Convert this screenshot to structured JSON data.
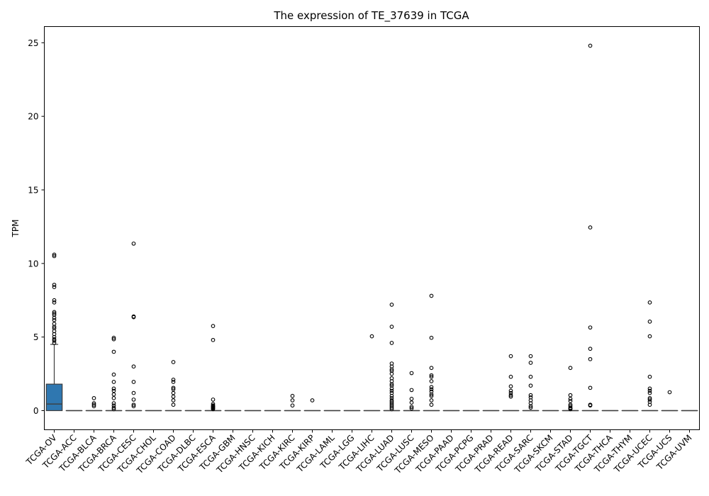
{
  "chart_data": {
    "type": "box",
    "title": "The expression of TE_37639 in TCGA",
    "xlabel": "",
    "ylabel": "TPM",
    "ylim": [
      -1.3,
      26.1
    ],
    "yticks": [
      0,
      5,
      10,
      15,
      20,
      25
    ],
    "grid": false,
    "legend": "none",
    "box_color": "#2f77b0",
    "categories": [
      "TCGA-OV",
      "TCGA-ACC",
      "TCGA-BLCA",
      "TCGA-BRCA",
      "TCGA-CESC",
      "TCGA-CHOL",
      "TCGA-COAD",
      "TCGA-DLBC",
      "TCGA-ESCA",
      "TCGA-GBM",
      "TCGA-HNSC",
      "TCGA-KICH",
      "TCGA-KIRC",
      "TCGA-KIRP",
      "TCGA-LAML",
      "TCGA-LGG",
      "TCGA-LIHC",
      "TCGA-LUAD",
      "TCGA-LUSC",
      "TCGA-MESO",
      "TCGA-PAAD",
      "TCGA-PCPG",
      "TCGA-PRAD",
      "TCGA-READ",
      "TCGA-SARC",
      "TCGA-SKCM",
      "TCGA-STAD",
      "TCGA-TGCT",
      "TCGA-THCA",
      "TCGA-THYM",
      "TCGA-UCEC",
      "TCGA-UCS",
      "TCGA-UVM"
    ],
    "boxes": [
      {
        "q1": 0,
        "median": 0.45,
        "q3": 1.8,
        "whisker_low": 0,
        "whisker_high": 4.5,
        "outliers": [
          10.6,
          10.5,
          8.55,
          8.4,
          7.5,
          7.35,
          6.7,
          6.6,
          6.5,
          6.3,
          6.15,
          5.9,
          5.7,
          5.6,
          5.4,
          5.2,
          5.0,
          4.85,
          4.75,
          4.6
        ]
      },
      {
        "q1": 0,
        "median": 0,
        "q3": 0,
        "whisker_low": 0,
        "whisker_high": 0,
        "outliers": []
      },
      {
        "q1": 0,
        "median": 0,
        "q3": 0,
        "whisker_low": 0,
        "whisker_high": 0,
        "outliers": [
          0.85,
          0.5,
          0.4,
          0.3
        ]
      },
      {
        "q1": 0,
        "median": 0,
        "q3": 0,
        "whisker_low": 0,
        "whisker_high": 0,
        "outliers": [
          4.95,
          4.85,
          4.0,
          2.45,
          1.95,
          1.5,
          1.35,
          1.1,
          0.85,
          0.5,
          0.35,
          0.2,
          0.1
        ]
      },
      {
        "q1": 0,
        "median": 0,
        "q3": 0,
        "whisker_low": 0,
        "whisker_high": 0,
        "outliers": [
          11.35,
          6.4,
          6.35,
          3.0,
          1.95,
          1.2,
          0.75,
          0.4,
          0.3
        ]
      },
      {
        "q1": 0,
        "median": 0,
        "q3": 0,
        "whisker_low": 0,
        "whisker_high": 0,
        "outliers": []
      },
      {
        "q1": 0,
        "median": 0,
        "q3": 0,
        "whisker_low": 0,
        "whisker_high": 0,
        "outliers": [
          3.3,
          2.1,
          1.95,
          1.55,
          1.45,
          1.2,
          0.95,
          0.7,
          0.4
        ]
      },
      {
        "q1": 0,
        "median": 0,
        "q3": 0,
        "whisker_low": 0,
        "whisker_high": 0,
        "outliers": []
      },
      {
        "q1": 0,
        "median": 0,
        "q3": 0,
        "whisker_low": 0,
        "whisker_high": 0,
        "outliers": [
          5.75,
          4.8,
          0.75,
          0.45,
          0.35,
          0.3,
          0.25,
          0.2,
          0.15,
          0.1
        ]
      },
      {
        "q1": 0,
        "median": 0,
        "q3": 0,
        "whisker_low": 0,
        "whisker_high": 0,
        "outliers": []
      },
      {
        "q1": 0,
        "median": 0,
        "q3": 0,
        "whisker_low": 0,
        "whisker_high": 0,
        "outliers": []
      },
      {
        "q1": 0,
        "median": 0,
        "q3": 0,
        "whisker_low": 0,
        "whisker_high": 0,
        "outliers": []
      },
      {
        "q1": 0,
        "median": 0,
        "q3": 0,
        "whisker_low": 0,
        "whisker_high": 0,
        "outliers": [
          1.0,
          0.7,
          0.35
        ]
      },
      {
        "q1": 0,
        "median": 0,
        "q3": 0,
        "whisker_low": 0,
        "whisker_high": 0,
        "outliers": [
          0.7
        ]
      },
      {
        "q1": 0,
        "median": 0,
        "q3": 0,
        "whisker_low": 0,
        "whisker_high": 0,
        "outliers": []
      },
      {
        "q1": 0,
        "median": 0,
        "q3": 0,
        "whisker_low": 0,
        "whisker_high": 0,
        "outliers": []
      },
      {
        "q1": 0,
        "median": 0,
        "q3": 0,
        "whisker_low": 0,
        "whisker_high": 0,
        "outliers": [
          5.05
        ]
      },
      {
        "q1": 0,
        "median": 0,
        "q3": 0,
        "whisker_low": 0,
        "whisker_high": 0,
        "outliers": [
          7.2,
          5.7,
          4.6,
          3.2,
          3.0,
          2.8,
          2.7,
          2.5,
          2.2,
          2.0,
          1.8,
          1.7,
          1.5,
          1.35,
          1.2,
          1.0,
          0.85,
          0.7,
          0.6,
          0.5,
          0.4,
          0.3,
          0.2,
          0.1
        ]
      },
      {
        "q1": 0,
        "median": 0,
        "q3": 0,
        "whisker_low": 0,
        "whisker_high": 0,
        "outliers": [
          2.55,
          1.4,
          0.8,
          0.55,
          0.25,
          0.15
        ]
      },
      {
        "q1": 0,
        "median": 0,
        "q3": 0,
        "whisker_low": 0,
        "whisker_high": 0,
        "outliers": [
          7.8,
          4.95,
          2.9,
          2.4,
          2.3,
          2.0,
          1.6,
          1.45,
          1.3,
          1.1,
          1.0,
          0.7,
          0.4
        ]
      },
      {
        "q1": 0,
        "median": 0,
        "q3": 0,
        "whisker_low": 0,
        "whisker_high": 0,
        "outliers": []
      },
      {
        "q1": 0,
        "median": 0,
        "q3": 0,
        "whisker_low": 0,
        "whisker_high": 0,
        "outliers": []
      },
      {
        "q1": 0,
        "median": 0,
        "q3": 0,
        "whisker_low": 0,
        "whisker_high": 0,
        "outliers": []
      },
      {
        "q1": 0,
        "median": 0,
        "q3": 0,
        "whisker_low": 0,
        "whisker_high": 0,
        "outliers": [
          3.7,
          2.3,
          1.65,
          1.35,
          1.2,
          1.05,
          0.95
        ]
      },
      {
        "q1": 0,
        "median": 0,
        "q3": 0,
        "whisker_low": 0,
        "whisker_high": 0,
        "outliers": [
          3.7,
          3.25,
          2.3,
          1.7,
          1.05,
          0.9,
          0.7,
          0.5,
          0.3,
          0.2
        ]
      },
      {
        "q1": 0,
        "median": 0,
        "q3": 0,
        "whisker_low": 0,
        "whisker_high": 0,
        "outliers": []
      },
      {
        "q1": 0,
        "median": 0,
        "q3": 0,
        "whisker_low": 0,
        "whisker_high": 0,
        "outliers": [
          2.9,
          1.05,
          0.8,
          0.65,
          0.4,
          0.3,
          0.2,
          0.15,
          0.1
        ]
      },
      {
        "q1": 0,
        "median": 0,
        "q3": 0,
        "whisker_low": 0,
        "whisker_high": 0,
        "outliers": [
          24.8,
          12.45,
          5.65,
          4.2,
          3.5,
          1.55,
          0.4,
          0.35
        ]
      },
      {
        "q1": 0,
        "median": 0,
        "q3": 0,
        "whisker_low": 0,
        "whisker_high": 0,
        "outliers": []
      },
      {
        "q1": 0,
        "median": 0,
        "q3": 0,
        "whisker_low": 0,
        "whisker_high": 0,
        "outliers": []
      },
      {
        "q1": 0,
        "median": 0,
        "q3": 0,
        "whisker_low": 0,
        "whisker_high": 0,
        "outliers": [
          7.35,
          6.05,
          5.05,
          2.3,
          1.5,
          1.35,
          1.2,
          0.85,
          0.75,
          0.6,
          0.4
        ]
      },
      {
        "q1": 0,
        "median": 0,
        "q3": 0,
        "whisker_low": 0,
        "whisker_high": 0,
        "outliers": [
          1.25
        ]
      },
      {
        "q1": 0,
        "median": 0,
        "q3": 0,
        "whisker_low": 0,
        "whisker_high": 0,
        "outliers": []
      }
    ]
  }
}
